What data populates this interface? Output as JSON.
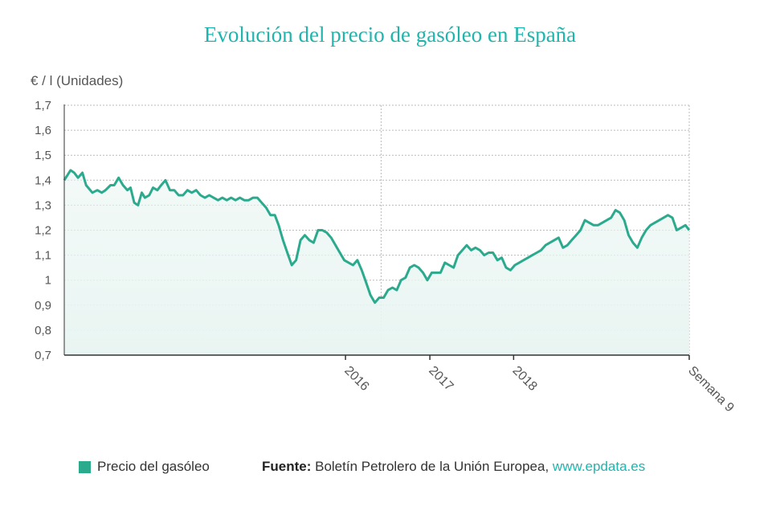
{
  "title": "Evolución del precio de gasóleo en España",
  "unit_label": "€ / l (Unidades)",
  "legend": {
    "label": "Precio del gasóleo",
    "color": "#2baa8e"
  },
  "source": {
    "prefix": "Fuente:",
    "text": " Boletín Petrolero de la Unión Europea, ",
    "link": "www.epdata.es"
  },
  "colors": {
    "line": "#2baa8e",
    "fill": "#e9f5f2",
    "grid": "#bbbbbb",
    "axis": "#333333",
    "text": "#555555"
  },
  "chart_data": {
    "type": "area",
    "ylim": [
      0.7,
      1.7
    ],
    "y_ticks": [
      "0,7",
      "0,8",
      "0,9",
      "1",
      "1,1",
      "1,2",
      "1,3",
      "1,4",
      "1,5",
      "1,6",
      "1,7"
    ],
    "x_range": [
      0,
      100
    ],
    "x_ticks": [
      {
        "x": 45.0,
        "label": "2016"
      },
      {
        "x": 58.5,
        "label": "2017"
      },
      {
        "x": 71.9,
        "label": "2018"
      },
      {
        "x": 100.0,
        "label": "Semana 9"
      }
    ],
    "vertical_marker_x": 50.7,
    "series": [
      {
        "name": "Precio del gasóleo",
        "x": [
          0,
          1,
          1.6,
          2.2,
          2.9,
          3.5,
          4.5,
          5.3,
          6,
          6.6,
          7.4,
          8,
          8.7,
          9.4,
          10.1,
          10.6,
          11.2,
          11.8,
          12.4,
          12.9,
          13.6,
          14.2,
          14.9,
          15.5,
          16.2,
          16.9,
          17.6,
          18.3,
          19,
          19.7,
          20.4,
          21.1,
          21.8,
          22.5,
          23.2,
          23.9,
          24.6,
          25.3,
          26,
          26.7,
          27.4,
          28.1,
          28.8,
          29.5,
          30.2,
          30.9,
          31.6,
          32.3,
          33,
          33.7,
          34.3,
          35,
          35.7,
          36.4,
          37.1,
          37.8,
          38.5,
          39.2,
          39.9,
          40.6,
          41.3,
          42,
          42.7,
          43.4,
          44.1,
          44.8,
          45.5,
          46.2,
          46.9,
          47.6,
          48.3,
          49,
          49.7,
          50.4,
          51.1,
          51.8,
          52.5,
          53.2,
          53.9,
          54.6,
          55.3,
          56,
          56.7,
          57.4,
          58.1,
          58.8,
          59.5,
          60.2,
          60.9,
          61.6,
          62.3,
          63,
          63.7,
          64.4,
          65.1,
          65.8,
          66.5,
          67.2,
          67.9,
          68.6,
          69.3,
          70,
          70.7,
          71.4,
          72.1,
          72.8,
          73.5,
          74.2,
          74.9,
          75.6,
          76.3,
          77,
          77.7,
          78.4,
          79.1,
          79.8,
          80.5,
          81.2,
          81.9,
          82.6,
          83.3,
          84,
          84.7,
          85.4,
          86.1,
          86.8,
          87.5,
          88.2,
          88.9,
          89.6,
          90.3,
          91,
          91.7,
          92.4,
          93.1,
          93.8,
          94.5,
          95.2,
          95.9,
          96.6,
          97.3,
          98,
          98.7,
          99.4,
          100
        ],
        "values": [
          1.4,
          1.44,
          1.43,
          1.41,
          1.43,
          1.38,
          1.35,
          1.36,
          1.35,
          1.36,
          1.38,
          1.38,
          1.41,
          1.38,
          1.36,
          1.37,
          1.31,
          1.3,
          1.35,
          1.33,
          1.34,
          1.37,
          1.36,
          1.38,
          1.4,
          1.36,
          1.36,
          1.34,
          1.34,
          1.36,
          1.35,
          1.36,
          1.34,
          1.33,
          1.34,
          1.33,
          1.32,
          1.33,
          1.32,
          1.33,
          1.32,
          1.33,
          1.32,
          1.32,
          1.33,
          1.33,
          1.31,
          1.29,
          1.26,
          1.26,
          1.22,
          1.16,
          1.11,
          1.06,
          1.08,
          1.16,
          1.18,
          1.16,
          1.15,
          1.2,
          1.2,
          1.19,
          1.17,
          1.14,
          1.11,
          1.08,
          1.07,
          1.06,
          1.08,
          1.04,
          0.99,
          0.94,
          0.91,
          0.93,
          0.93,
          0.96,
          0.97,
          0.96,
          1.0,
          1.01,
          1.05,
          1.06,
          1.05,
          1.03,
          1.0,
          1.03,
          1.03,
          1.03,
          1.07,
          1.06,
          1.05,
          1.1,
          1.12,
          1.14,
          1.12,
          1.13,
          1.12,
          1.1,
          1.11,
          1.11,
          1.08,
          1.09,
          1.05,
          1.04,
          1.06,
          1.07,
          1.08,
          1.09,
          1.1,
          1.11,
          1.12,
          1.14,
          1.15,
          1.16,
          1.17,
          1.13,
          1.14,
          1.16,
          1.18,
          1.2,
          1.24,
          1.23,
          1.22,
          1.22,
          1.23,
          1.24,
          1.25,
          1.28,
          1.27,
          1.24,
          1.18,
          1.15,
          1.13,
          1.17,
          1.2,
          1.22,
          1.23,
          1.24,
          1.25,
          1.26,
          1.25,
          1.2,
          1.21,
          1.22,
          1.2
        ]
      }
    ]
  }
}
